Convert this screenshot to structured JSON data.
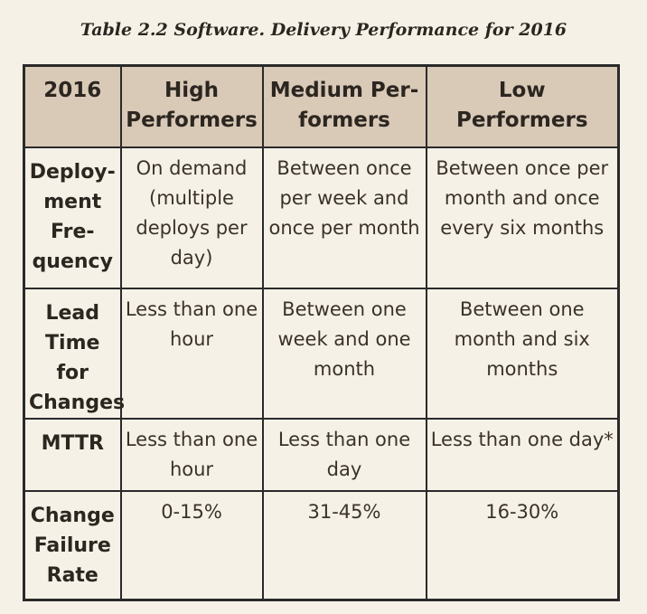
{
  "caption": "Table 2.2 Software. Delivery Performance for 2016",
  "header": {
    "year": "2016",
    "high": "High\nPerformers",
    "medium": "Medium Per-\nformers",
    "low": "Low Performers"
  },
  "rows": [
    {
      "label": "Deploy-\nment\nFre-\nquency",
      "high": "On demand\n(multiple\ndeploys per\nday)",
      "medium": "Between once\nper week and\nonce per month",
      "low": "Between once per\nmonth and once\nevery six months"
    },
    {
      "label": "Lead\nTime for\nChanges",
      "high": "Less than one\nhour",
      "medium": "Between one\nweek and one\nmonth",
      "low": "Between one\nmonth and six\nmonths"
    },
    {
      "label": "MTTR",
      "high": "Less than one\nhour",
      "medium": "Less than one\nday",
      "low": "Less than one day*"
    },
    {
      "label": "Change\nFailure\nRate",
      "high": "0-15%",
      "medium": "31-45%",
      "low": "16-30%"
    }
  ]
}
